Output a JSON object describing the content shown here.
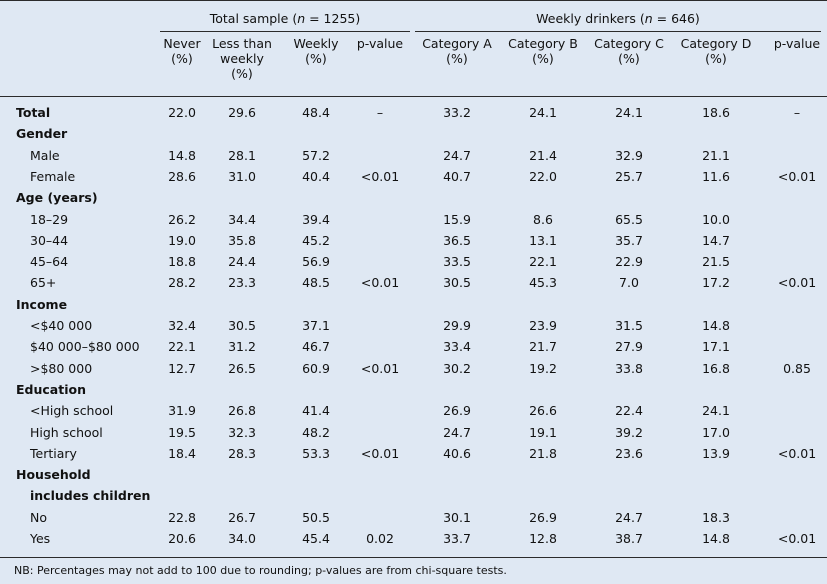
{
  "header": {
    "total_group": {
      "prefix": "Total sample (",
      "var": "n",
      "suffix": " = 1255)"
    },
    "weekly_group": {
      "prefix": "Weekly drinkers (",
      "var": "n",
      "suffix": " = 646)"
    },
    "columns": [
      [
        "Never",
        "(%)"
      ],
      [
        "Less than",
        "weekly",
        "(%)"
      ],
      [
        "Weekly",
        "(%)"
      ],
      [
        "p-value"
      ],
      [
        "Category A",
        "(%)"
      ],
      [
        "Category B",
        "(%)"
      ],
      [
        "Category C",
        "(%)"
      ],
      [
        "Category D",
        "(%)"
      ],
      [
        "p-value"
      ]
    ]
  },
  "rows": [
    {
      "label": "Total",
      "style": "bold",
      "values": [
        "22.0",
        "29.6",
        "48.4",
        "–",
        "33.2",
        "24.1",
        "24.1",
        "18.6",
        "–"
      ]
    },
    {
      "label": "Gender",
      "style": "bold",
      "values": []
    },
    {
      "label": "Male",
      "style": "sub",
      "values": [
        "14.8",
        "28.1",
        "57.2",
        "",
        "24.7",
        "21.4",
        "32.9",
        "21.1",
        ""
      ]
    },
    {
      "label": "Female",
      "style": "sub",
      "values": [
        "28.6",
        "31.0",
        "40.4",
        "<0.01",
        "40.7",
        "22.0",
        "25.7",
        "11.6",
        "<0.01"
      ]
    },
    {
      "label": "Age (years)",
      "style": "bold",
      "values": []
    },
    {
      "label": "18–29",
      "style": "sub",
      "values": [
        "26.2",
        "34.4",
        "39.4",
        "",
        "15.9",
        "8.6",
        "65.5",
        "10.0",
        ""
      ]
    },
    {
      "label": "30–44",
      "style": "sub",
      "values": [
        "19.0",
        "35.8",
        "45.2",
        "",
        "36.5",
        "13.1",
        "35.7",
        "14.7",
        ""
      ]
    },
    {
      "label": "45–64",
      "style": "sub",
      "values": [
        "18.8",
        "24.4",
        "56.9",
        "",
        "33.5",
        "22.1",
        "22.9",
        "21.5",
        ""
      ]
    },
    {
      "label": "65+",
      "style": "sub",
      "values": [
        "28.2",
        "23.3",
        "48.5",
        "<0.01",
        "30.5",
        "45.3",
        "7.0",
        "17.2",
        "<0.01"
      ]
    },
    {
      "label": "Income",
      "style": "bold",
      "values": []
    },
    {
      "label": "<$40 000",
      "style": "sub",
      "values": [
        "32.4",
        "30.5",
        "37.1",
        "",
        "29.9",
        "23.9",
        "31.5",
        "14.8",
        ""
      ]
    },
    {
      "label": "$40 000–$80 000",
      "style": "sub",
      "values": [
        "22.1",
        "31.2",
        "46.7",
        "",
        "33.4",
        "21.7",
        "27.9",
        "17.1",
        ""
      ]
    },
    {
      "label": ">$80 000",
      "style": "sub",
      "values": [
        "12.7",
        "26.5",
        "60.9",
        "<0.01",
        "30.2",
        "19.2",
        "33.8",
        "16.8",
        "0.85"
      ]
    },
    {
      "label": "Education",
      "style": "bold",
      "values": []
    },
    {
      "label": "<High school",
      "style": "sub",
      "values": [
        "31.9",
        "26.8",
        "41.4",
        "",
        "26.9",
        "26.6",
        "22.4",
        "24.1",
        ""
      ]
    },
    {
      "label": "High school",
      "style": "sub",
      "values": [
        "19.5",
        "32.3",
        "48.2",
        "",
        "24.7",
        "19.1",
        "39.2",
        "17.0",
        ""
      ]
    },
    {
      "label": "Tertiary",
      "style": "sub",
      "values": [
        "18.4",
        "28.3",
        "53.3",
        "<0.01",
        "40.6",
        "21.8",
        "23.6",
        "13.9",
        "<0.01"
      ]
    },
    {
      "label": "Household",
      "style": "bold",
      "values": []
    },
    {
      "label": "includes children",
      "style": "bold-sub",
      "values": []
    },
    {
      "label": "No",
      "style": "sub",
      "values": [
        "22.8",
        "26.7",
        "50.5",
        "",
        "30.1",
        "26.9",
        "24.7",
        "18.3",
        ""
      ]
    },
    {
      "label": "Yes",
      "style": "sub",
      "values": [
        "20.6",
        "34.0",
        "45.4",
        "0.02",
        "33.7",
        "12.8",
        "38.7",
        "14.8",
        "<0.01"
      ]
    }
  ],
  "footnote": "NB: Percentages may not add to 100 due to rounding; p-values are from chi-square tests."
}
